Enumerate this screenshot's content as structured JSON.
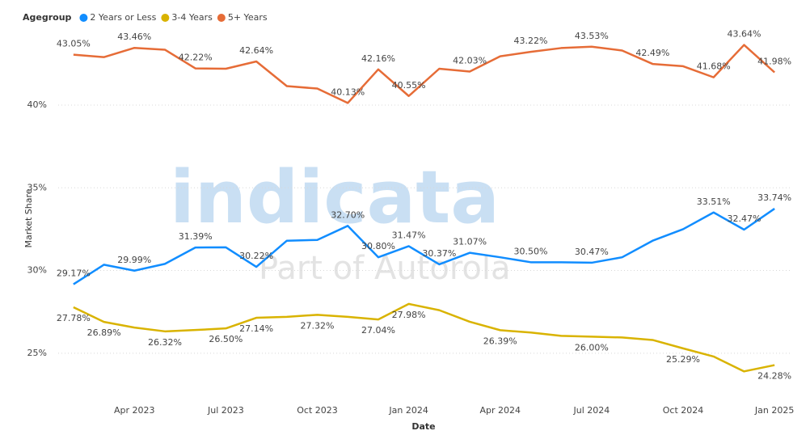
{
  "chart_data": {
    "type": "line",
    "legend_title": "Agegroup",
    "x_label": "Date",
    "y_label": "Market Share",
    "watermark": [
      "indicata",
      "Part of Autorola"
    ],
    "categories": [
      null,
      null,
      "Apr 2023",
      null,
      null,
      "Jul 2023",
      null,
      null,
      "Oct 2023",
      null,
      null,
      "Jan 2024",
      null,
      null,
      "Apr 2024",
      null,
      null,
      "Jul 2024",
      null,
      null,
      "Oct 2024",
      null,
      null,
      "Jan 2025"
    ],
    "ylim": [
      22.4,
      44.4
    ],
    "yticks": [
      {
        "value": 25,
        "label": "25%"
      },
      {
        "value": 30,
        "label": "30%"
      },
      {
        "value": 35,
        "label": "35%"
      },
      {
        "value": 40,
        "label": "40%"
      }
    ],
    "grid": true,
    "legend": "top-left",
    "series": [
      {
        "name": "2 Years or Less",
        "color": "#118dff",
        "values": [
          29.17,
          30.35,
          29.99,
          30.4,
          31.39,
          31.4,
          30.22,
          31.8,
          31.85,
          32.7,
          30.8,
          31.47,
          30.37,
          31.07,
          30.8,
          30.5,
          30.5,
          30.47,
          30.8,
          31.8,
          32.5,
          33.51,
          32.47,
          33.74
        ],
        "value_labels": [
          "29.17%",
          null,
          "29.99%",
          null,
          "31.39%",
          null,
          "30.22%",
          null,
          null,
          "32.70%",
          "30.80%",
          "31.47%",
          "30.37%",
          "31.07%",
          null,
          "30.50%",
          null,
          "30.47%",
          null,
          null,
          null,
          "33.51%",
          "32.47%",
          "33.74%"
        ]
      },
      {
        "name": "3-4 Years",
        "color": "#d9b300",
        "values": [
          27.78,
          26.89,
          26.55,
          26.32,
          26.4,
          26.5,
          27.14,
          27.2,
          27.32,
          27.2,
          27.04,
          27.98,
          27.6,
          26.9,
          26.39,
          26.25,
          26.05,
          26.0,
          25.95,
          25.8,
          25.29,
          24.8,
          23.9,
          24.28
        ],
        "value_labels": [
          "27.78%",
          "26.89%",
          null,
          "26.32%",
          null,
          "26.50%",
          "27.14%",
          null,
          "27.32%",
          null,
          "27.04%",
          "27.98%",
          null,
          null,
          "26.39%",
          null,
          null,
          "26.00%",
          null,
          null,
          "25.29%",
          null,
          null,
          "24.28%"
        ]
      },
      {
        "name": "5+ Years",
        "color": "#e66c37",
        "values": [
          43.05,
          42.9,
          43.46,
          43.35,
          42.22,
          42.2,
          42.64,
          41.15,
          41.0,
          40.13,
          42.16,
          40.55,
          42.2,
          42.03,
          42.95,
          43.22,
          43.45,
          43.53,
          43.3,
          42.49,
          42.35,
          41.68,
          43.64,
          41.98
        ],
        "value_labels": [
          "43.05%",
          null,
          "43.46%",
          null,
          "42.22%",
          null,
          "42.64%",
          null,
          null,
          "40.13%",
          "42.16%",
          "40.55%",
          null,
          "42.03%",
          null,
          "43.22%",
          null,
          "43.53%",
          null,
          "42.49%",
          null,
          "41.68%",
          "43.64%",
          "41.98%"
        ]
      }
    ]
  }
}
